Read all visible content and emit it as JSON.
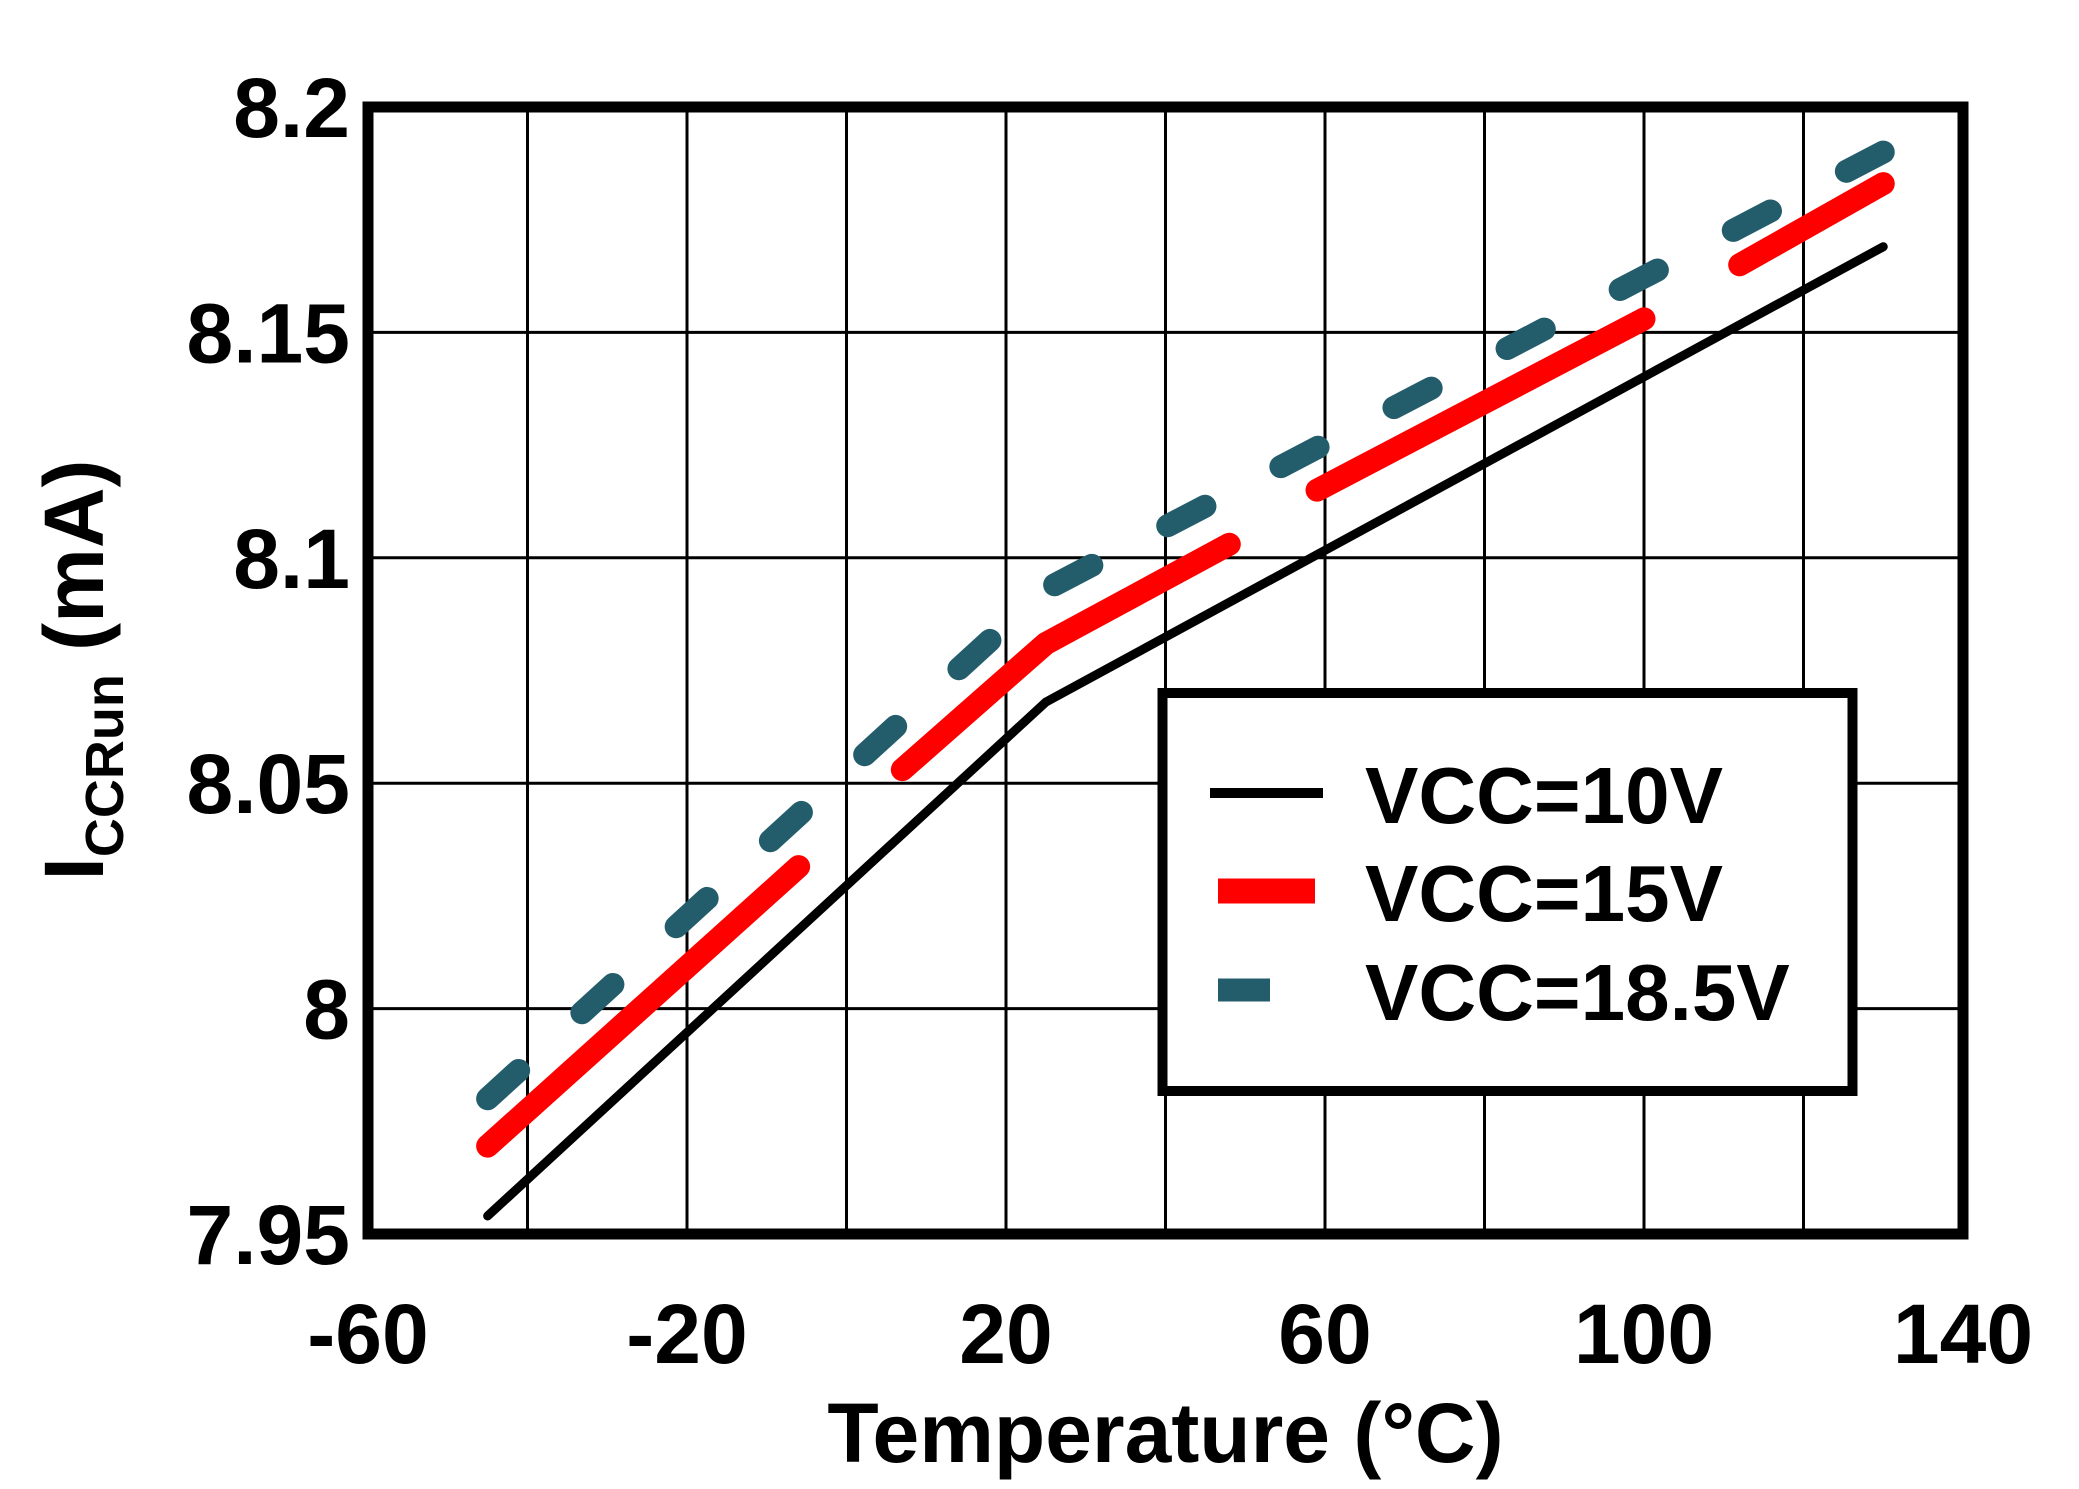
{
  "chart_data": {
    "type": "line",
    "title": "",
    "xlabel": "Temperature (°C)",
    "ylabel": {
      "main": "I",
      "sub": "CCRun",
      "unit": " (mA)"
    },
    "xlim": [
      -60,
      140
    ],
    "ylim": [
      7.95,
      8.2
    ],
    "x_ticks": [
      -60,
      -20,
      20,
      60,
      100,
      140
    ],
    "x_tick_labels": [
      "-60",
      "-20",
      "20",
      "60",
      "100",
      "140"
    ],
    "x_grid_step": 20,
    "y_ticks": [
      7.95,
      8,
      8.05,
      8.1,
      8.15,
      8.2
    ],
    "y_tick_labels": [
      "7.95",
      "8",
      "8.05",
      "8.1",
      "8.15",
      "8.2"
    ],
    "grid": true,
    "background": "#ffffff",
    "axis_color": "#000000",
    "legend": {
      "position": "inside-lower-right",
      "border_color": "#000000",
      "fill": "#ffffff"
    },
    "series": [
      {
        "name": "VCC=10V",
        "color": "#000000",
        "style": "solid",
        "stroke_width": 9,
        "segments": [
          [
            [
              -45,
              7.954
            ],
            [
              25,
              8.068
            ],
            [
              130,
              8.169
            ]
          ]
        ]
      },
      {
        "name": "VCC=15V",
        "color": "#ff0000",
        "style": "solid-with-breaks",
        "stroke_width": 23,
        "segments": [
          [
            [
              -45,
              7.9695
            ],
            [
              -6,
              8.0315
            ]
          ],
          [
            [
              7,
              8.053
            ],
            [
              25,
              8.081
            ],
            [
              48,
              8.103
            ]
          ],
          [
            [
              59,
              8.115
            ],
            [
              100,
              8.153
            ]
          ],
          [
            [
              112,
              8.165
            ],
            [
              130,
              8.183
            ]
          ]
        ]
      },
      {
        "name": "VCC=18.5V",
        "color": "#235d6b",
        "style": "dashed",
        "stroke_width": 23,
        "dash": [
          42,
          85.6
        ],
        "segments": [
          [
            [
              -45,
              7.98
            ],
            [
              25,
              8.093
            ],
            [
              130,
              8.19
            ]
          ]
        ]
      }
    ]
  }
}
